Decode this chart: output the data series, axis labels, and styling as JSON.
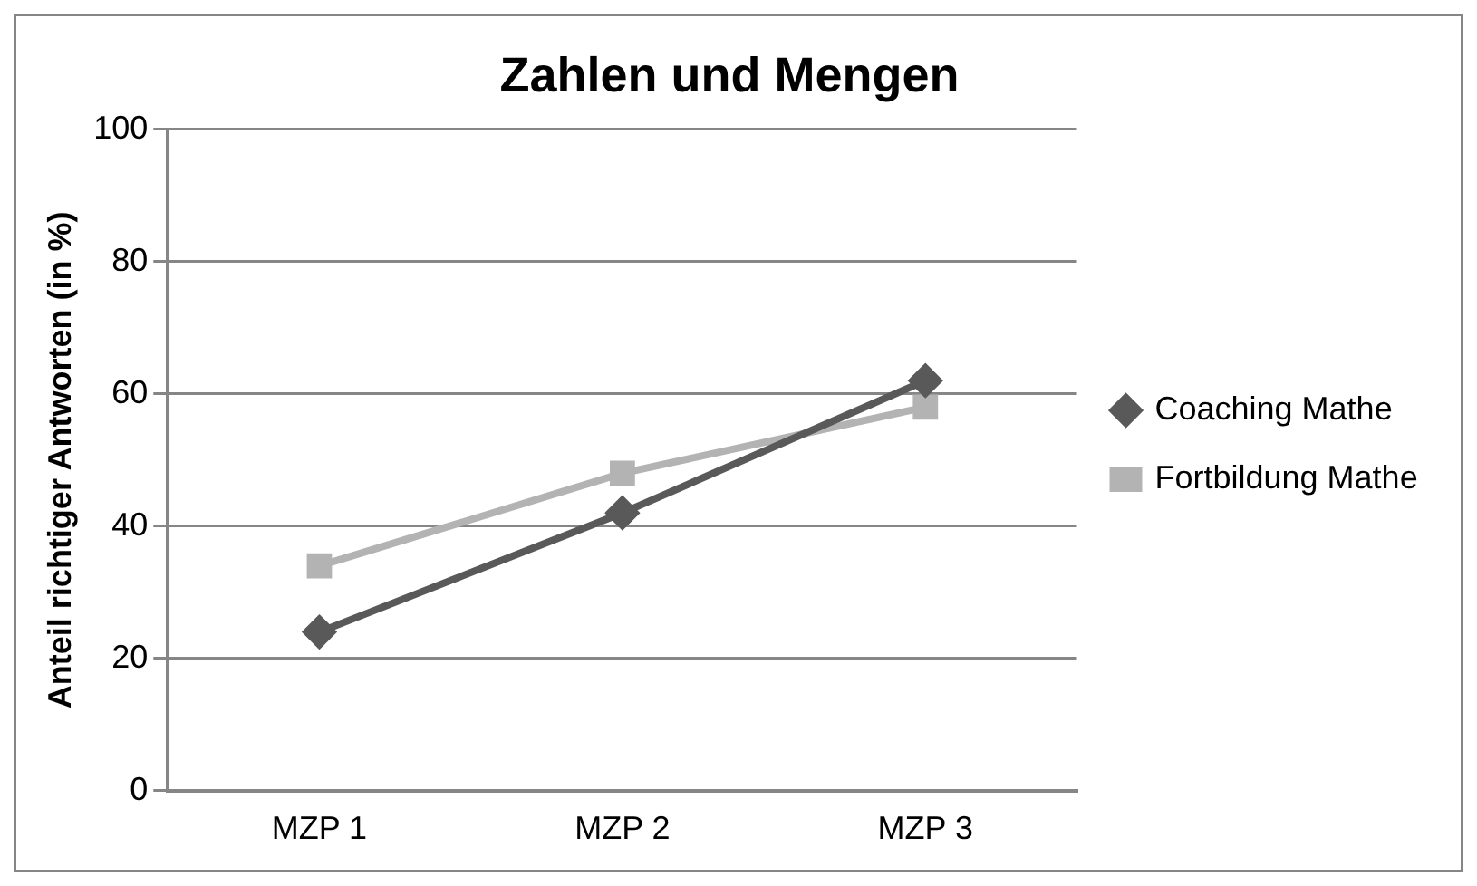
{
  "chart_data": {
    "type": "line",
    "title": "Zahlen und Mengen",
    "ylabel": "Anteil richtiger Antworten (in %)",
    "categories": [
      "MZP 1",
      "MZP 2",
      "MZP 3"
    ],
    "series": [
      {
        "name": "Coaching Mathe",
        "color": "#595959",
        "marker": "diamond",
        "values": [
          24,
          42,
          62
        ]
      },
      {
        "name": "Fortbildung Mathe",
        "color": "#b3b3b3",
        "marker": "square",
        "values": [
          34,
          48,
          58
        ]
      }
    ],
    "ylim": [
      0,
      100
    ],
    "yticks": [
      0,
      20,
      40,
      60,
      80,
      100
    ],
    "grid": "y",
    "legend": "right",
    "line_style": "solid"
  }
}
